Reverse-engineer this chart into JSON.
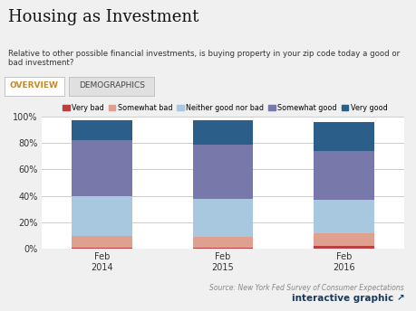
{
  "title": "Housing as Investment",
  "subtitle": "Relative to other possible financial investments, is buying property in your zip code today a good or bad investment?",
  "tab1": "OVERVIEW",
  "tab2": "DEMOGRAPHICS",
  "source": "Source: New York Fed Survey of Consumer Expectations",
  "footer": "interactive graphic ↗",
  "categories": [
    "Feb\n2014",
    "Feb\n2015",
    "Feb\n2016"
  ],
  "legend_labels": [
    "Very bad",
    "Somewhat bad",
    "Neither good nor bad",
    "Somewhat good",
    "Very good"
  ],
  "colors": [
    "#b94040",
    "#e0a090",
    "#a8c8e0",
    "#7878aa",
    "#2b5f8a"
  ],
  "data": [
    [
      1,
      9,
      30,
      42,
      15
    ],
    [
      1,
      8,
      29,
      41,
      18
    ],
    [
      2,
      10,
      25,
      37,
      22
    ]
  ],
  "ylim": [
    0,
    100
  ],
  "yticks": [
    0,
    20,
    40,
    60,
    80,
    100
  ],
  "yticklabels": [
    "0%",
    "20%",
    "40%",
    "60%",
    "80%",
    "100%"
  ],
  "bg_color": "#f0f0f0",
  "plot_bg": "#ffffff",
  "bar_width": 0.5,
  "tab_active_text": "#c8882a",
  "tab_inactive_text": "#444444"
}
